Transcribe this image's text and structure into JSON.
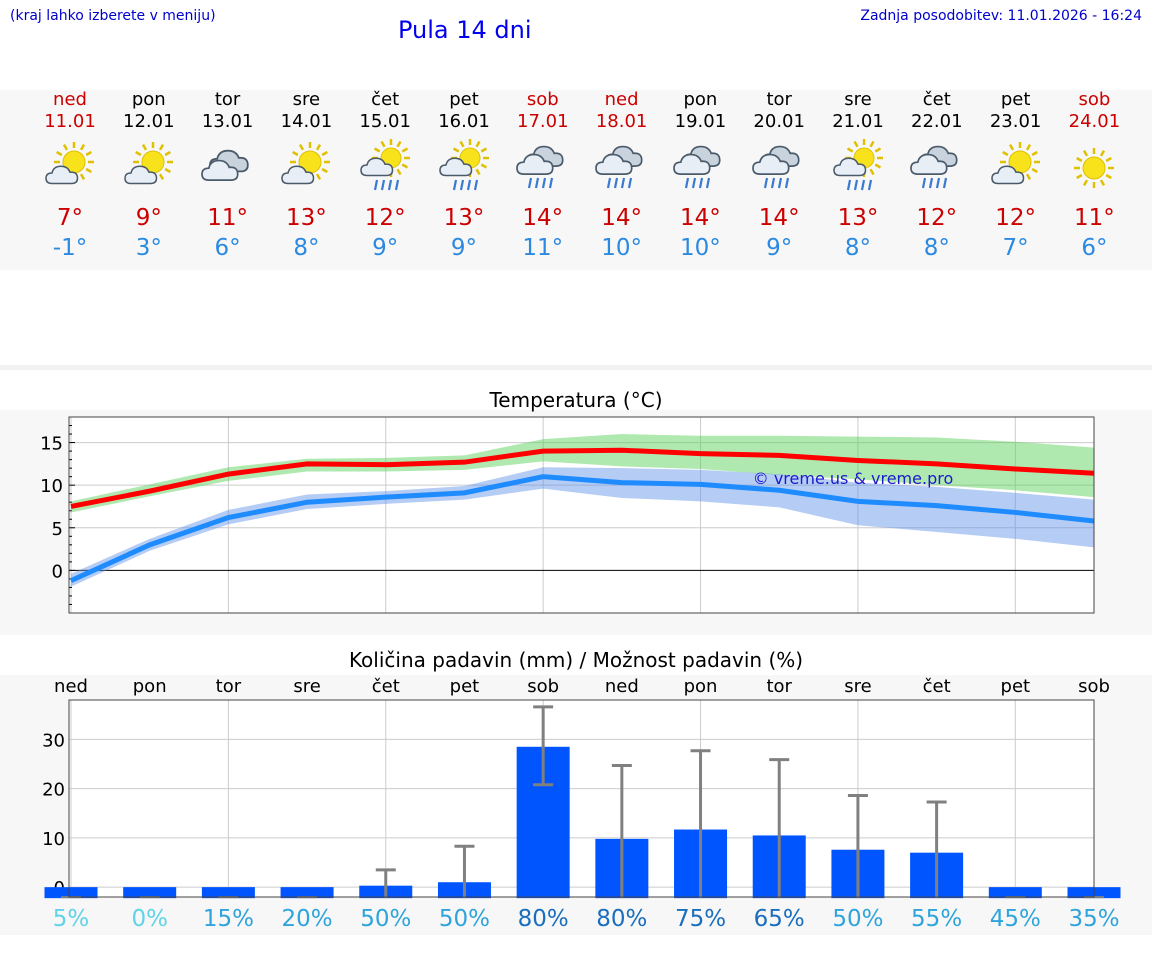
{
  "header": {
    "menu_hint": "(kraj lahko izberete v meniju)",
    "title": "Pula 14 dni",
    "updated": "Zadnja posodobitev: 11.01.2026 - 16:24"
  },
  "colors": {
    "weekend": "#cc0000",
    "weekday": "#000000",
    "max_temp": "#cc0000",
    "min_temp": "#2b8ae0",
    "max_line": "#ff0000",
    "min_line": "#1e8bff",
    "bar": "#0055ff"
  },
  "days": [
    {
      "name": "ned",
      "date": "11.01",
      "weekend": true,
      "icon": "partly-cloudy-icon",
      "max": "7°",
      "min": "-1°"
    },
    {
      "name": "pon",
      "date": "12.01",
      "weekend": false,
      "icon": "partly-cloudy-icon",
      "max": "9°",
      "min": "3°"
    },
    {
      "name": "tor",
      "date": "13.01",
      "weekend": false,
      "icon": "cloudy-icon",
      "max": "11°",
      "min": "6°"
    },
    {
      "name": "sre",
      "date": "14.01",
      "weekend": false,
      "icon": "partly-cloudy-icon",
      "max": "13°",
      "min": "8°"
    },
    {
      "name": "čet",
      "date": "15.01",
      "weekend": false,
      "icon": "sun-cloud-rain-icon",
      "max": "12°",
      "min": "9°"
    },
    {
      "name": "pet",
      "date": "16.01",
      "weekend": false,
      "icon": "sun-cloud-rain-icon",
      "max": "13°",
      "min": "9°"
    },
    {
      "name": "sob",
      "date": "17.01",
      "weekend": true,
      "icon": "rain-icon",
      "max": "14°",
      "min": "11°"
    },
    {
      "name": "ned",
      "date": "18.01",
      "weekend": true,
      "icon": "rain-icon",
      "max": "14°",
      "min": "10°"
    },
    {
      "name": "pon",
      "date": "19.01",
      "weekend": false,
      "icon": "rain-icon",
      "max": "14°",
      "min": "10°"
    },
    {
      "name": "tor",
      "date": "20.01",
      "weekend": false,
      "icon": "rain-icon",
      "max": "14°",
      "min": "9°"
    },
    {
      "name": "sre",
      "date": "21.01",
      "weekend": false,
      "icon": "sun-cloud-rain-icon",
      "max": "13°",
      "min": "8°"
    },
    {
      "name": "čet",
      "date": "22.01",
      "weekend": false,
      "icon": "rain-icon",
      "max": "12°",
      "min": "8°"
    },
    {
      "name": "pet",
      "date": "23.01",
      "weekend": false,
      "icon": "partly-cloudy-icon",
      "max": "12°",
      "min": "7°"
    },
    {
      "name": "sob",
      "date": "24.01",
      "weekend": true,
      "icon": "sun-icon",
      "max": "11°",
      "min": "6°"
    }
  ],
  "chart_data": [
    {
      "type": "line",
      "title": "Temperatura (°C)",
      "watermark": "© vreme.us & vreme.pro",
      "ylim": [
        -5,
        18
      ],
      "yticks": [
        0,
        5,
        10,
        15
      ],
      "x": [
        1,
        2,
        3,
        4,
        5,
        6,
        7,
        8,
        9,
        10,
        11,
        12,
        13,
        14
      ],
      "series": [
        {
          "name": "max",
          "values": [
            7.5,
            9.3,
            11.3,
            12.5,
            12.4,
            12.7,
            14.0,
            14.1,
            13.7,
            13.5,
            12.9,
            12.5,
            11.9,
            11.4
          ]
        },
        {
          "name": "min",
          "values": [
            -1.2,
            3.0,
            6.2,
            8.0,
            8.6,
            9.1,
            11.0,
            10.3,
            10.1,
            9.4,
            8.1,
            7.6,
            6.8,
            5.8
          ]
        }
      ],
      "bands": [
        {
          "name": "max-range",
          "lower": [
            6.8,
            8.7,
            10.5,
            11.6,
            11.6,
            11.8,
            12.8,
            12.2,
            11.9,
            11.2,
            10.7,
            10.0,
            9.4,
            8.6
          ],
          "upper": [
            8.1,
            10.1,
            12.1,
            13.1,
            13.2,
            13.5,
            15.4,
            16.0,
            15.8,
            15.8,
            15.7,
            15.6,
            15.1,
            14.4
          ]
        },
        {
          "name": "min-range",
          "lower": [
            -1.9,
            2.3,
            5.4,
            7.2,
            7.8,
            8.3,
            9.6,
            8.5,
            8.1,
            7.4,
            5.3,
            4.5,
            3.7,
            2.7
          ],
          "upper": [
            -0.4,
            3.7,
            7.1,
            8.9,
            9.3,
            9.9,
            12.1,
            12.0,
            11.8,
            11.3,
            10.3,
            9.8,
            9.1,
            8.3
          ]
        }
      ]
    },
    {
      "type": "bar",
      "title": "Količina padavin (mm) / Možnost padavin (%)",
      "categories": [
        "ned",
        "pon",
        "tor",
        "sre",
        "čet",
        "pet",
        "sob",
        "ned",
        "pon",
        "tor",
        "sre",
        "čet",
        "pet",
        "sob"
      ],
      "ylim": [
        -2,
        38
      ],
      "yticks": [
        0,
        10,
        20,
        30
      ],
      "values": [
        0,
        0,
        0,
        0,
        0.3,
        1.0,
        28.5,
        9.8,
        11.7,
        10.5,
        7.6,
        7.0,
        0,
        0
      ],
      "error_high": [
        0,
        0,
        0,
        0,
        3.5,
        8.3,
        36.6,
        24.7,
        27.7,
        25.9,
        18.6,
        17.3,
        0,
        0
      ],
      "error_low": [
        0,
        0,
        0,
        0,
        0,
        0,
        20.8,
        0,
        0,
        0,
        0,
        0,
        0,
        0
      ],
      "chance": [
        "5%",
        "0%",
        "15%",
        "20%",
        "50%",
        "50%",
        "80%",
        "80%",
        "75%",
        "65%",
        "50%",
        "55%",
        "45%",
        "35%"
      ],
      "chance_colors": [
        "#5fd3e8",
        "#5fd3e8",
        "#2fa4dc",
        "#2fa4dc",
        "#2fa4dc",
        "#2fa4dc",
        "#1a6ebd",
        "#1a6ebd",
        "#1a6ebd",
        "#1a6ebd",
        "#2fa4dc",
        "#2fa4dc",
        "#2fa4dc",
        "#2fa4dc"
      ]
    }
  ]
}
